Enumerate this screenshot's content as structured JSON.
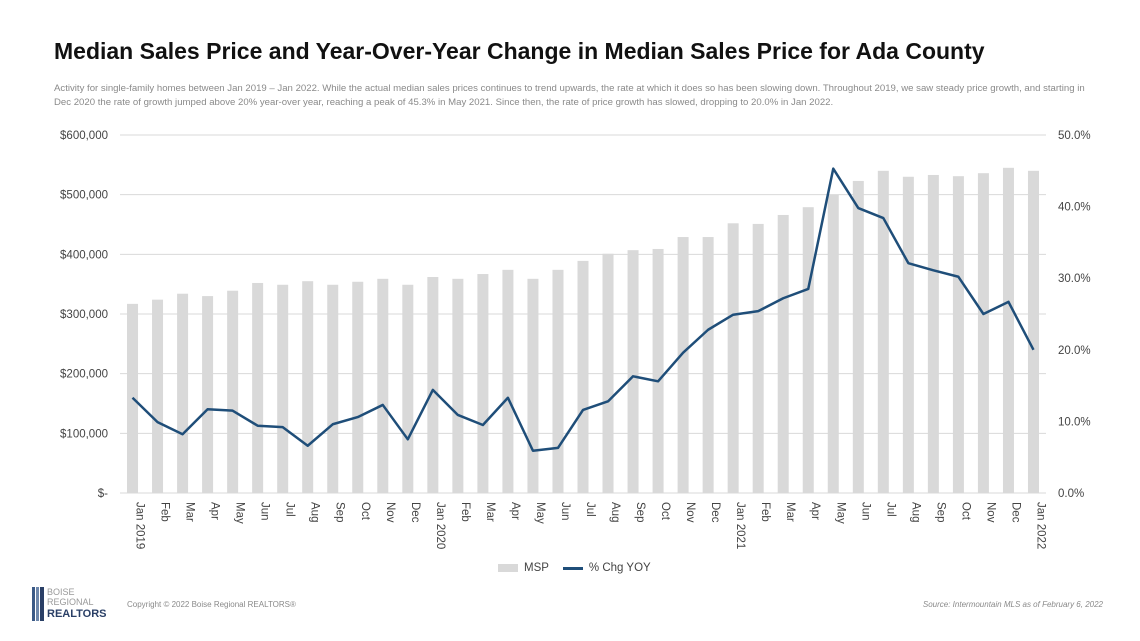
{
  "title": "Median Sales Price and Year-Over-Year Change in Median Sales Price for Ada County",
  "subtitle": "Activity for single-family homes between Jan 2019 – Jan 2022. While the actual median sales prices continues to trend upwards, the rate at which it does so has been slowing down. Throughout 2019, we saw steady price growth, and starting in Dec 2020 the rate of growth jumped above 20% year-over year, reaching a peak of 45.3% in May 2021. Since then, the rate of price growth has slowed, dropping to 20.0% in Jan 2022.",
  "chart_data": {
    "type": "bar+line",
    "categories": [
      "Jan 2019",
      "Feb",
      "Mar",
      "Apr",
      "May",
      "Jun",
      "Jul",
      "Aug",
      "Sep",
      "Oct",
      "Nov",
      "Dec",
      "Jan 2020",
      "Feb",
      "Mar",
      "Apr",
      "May",
      "Jun",
      "Jul",
      "Aug",
      "Sep",
      "Oct",
      "Nov",
      "Dec",
      "Jan 2021",
      "Feb",
      "Mar",
      "Apr",
      "May",
      "Jun",
      "Jul",
      "Aug",
      "Sep",
      "Oct",
      "Nov",
      "Dec",
      "Jan 2022"
    ],
    "series": [
      {
        "name": "MSP",
        "type": "bar",
        "axis": "left",
        "color": "#d9d9d9",
        "values": [
          317000,
          324000,
          334000,
          330000,
          339000,
          352000,
          349000,
          355000,
          349000,
          354000,
          359000,
          349000,
          362000,
          359000,
          367000,
          374000,
          359000,
          374000,
          389000,
          401000,
          407000,
          409000,
          429000,
          429000,
          452000,
          451000,
          466000,
          479000,
          500000,
          523000,
          540000,
          530000,
          533000,
          531000,
          536000,
          545000,
          540000
        ]
      },
      {
        "name": "% Chg YOY",
        "type": "line",
        "axis": "right",
        "color": "#1f4e79",
        "values": [
          13.3,
          9.9,
          8.2,
          11.7,
          11.5,
          9.4,
          9.2,
          6.6,
          9.6,
          10.6,
          12.3,
          7.5,
          14.4,
          10.9,
          9.5,
          13.3,
          5.9,
          6.3,
          11.6,
          12.8,
          16.3,
          15.6,
          19.6,
          22.8,
          24.9,
          25.4,
          27.2,
          28.5,
          45.3,
          39.8,
          38.4,
          32.1,
          31.1,
          30.2,
          25.0,
          26.7,
          20.0
        ]
      }
    ],
    "left_axis": {
      "ylim": [
        0,
        600000
      ],
      "ticks": [
        "$-",
        "$100,000",
        "$200,000",
        "$300,000",
        "$400,000",
        "$500,000",
        "$600,000"
      ]
    },
    "right_axis": {
      "ylim": [
        0,
        50
      ],
      "ticks": [
        "0.0%",
        "10.0%",
        "20.0%",
        "30.0%",
        "40.0%",
        "50.0%"
      ]
    },
    "grid": true,
    "legend": "bottom"
  },
  "legend": {
    "bar": "MSP",
    "line": "% Chg YOY"
  },
  "footer": {
    "copyright": "Copyright © 2022 Boise Regional REALTORS®",
    "source": "Source: Intermountain MLS as of February 6, 2022",
    "logo": [
      "BOISE",
      "REGIONAL",
      "REALTORS"
    ]
  }
}
